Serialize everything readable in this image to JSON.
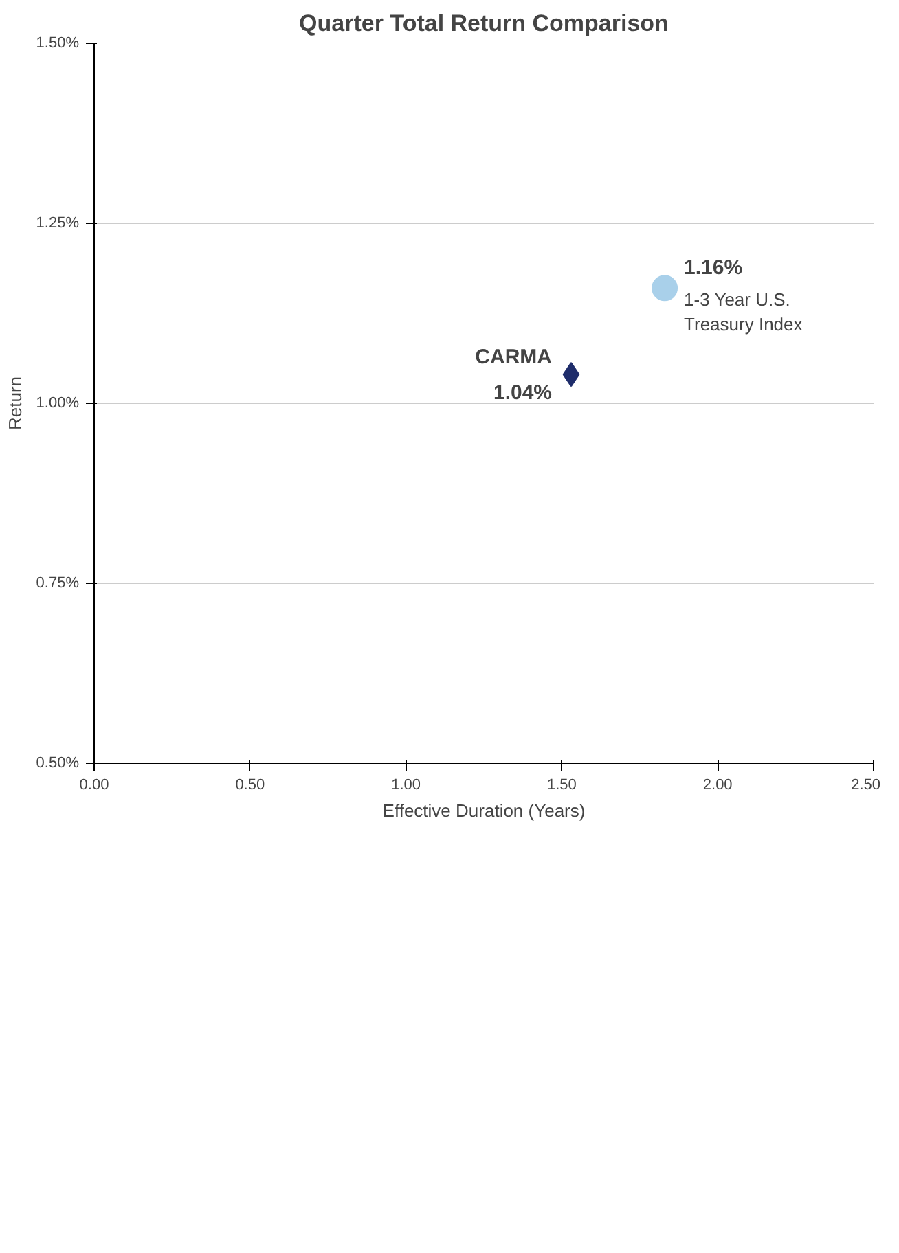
{
  "chart_data": {
    "type": "scatter",
    "title": "Quarter Total Return Comparison",
    "xlabel": "Effective Duration (Years)",
    "ylabel": "Return",
    "xlim": [
      0,
      2.5
    ],
    "xticks": [
      {
        "value": 0,
        "label": "0.00"
      },
      {
        "value": 0.5,
        "label": "0.50"
      },
      {
        "value": 1,
        "label": "1.00"
      },
      {
        "value": 1.5,
        "label": "1.50"
      },
      {
        "value": 2,
        "label": "2.00"
      },
      {
        "value": 2.5,
        "label": "2.50"
      }
    ],
    "ylim": [
      0.5,
      1.5
    ],
    "yticks": [
      {
        "value": 0.5,
        "label": "0.50%"
      },
      {
        "value": 0.75,
        "label": "0.75%"
      },
      {
        "value": 1,
        "label": "1.00%"
      },
      {
        "value": 1.25,
        "label": "1.25%"
      },
      {
        "value": 1.5,
        "label": "1.50%"
      }
    ],
    "grid": "y",
    "legend": false,
    "series": [
      {
        "name": "CARMA",
        "color": "#1f2d6b",
        "marker": "diamond",
        "x": [
          1.53
        ],
        "values": [
          1.04
        ],
        "value_labels": [
          "1.04%"
        ]
      },
      {
        "name": "1-3 Year U.S. Treasury Index",
        "color": "#a9d0ea",
        "marker": "circle",
        "x": [
          1.83
        ],
        "values": [
          1.16
        ],
        "value_labels": [
          "1.16%"
        ]
      }
    ]
  }
}
